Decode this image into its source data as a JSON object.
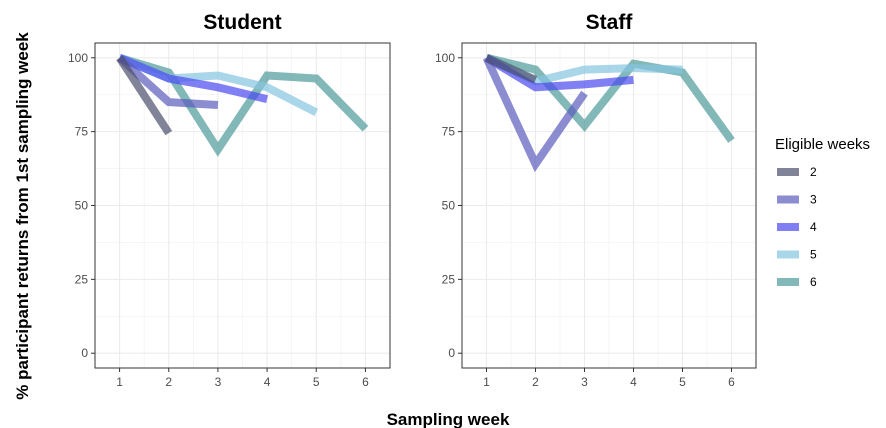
{
  "chart_data": {
    "type": "line",
    "ylabel": "% participant returns from 1st sampling week",
    "xlabel": "Sampling week",
    "xlim": [
      0.5,
      6.5
    ],
    "ylim": [
      -5,
      105
    ],
    "x_ticks": [
      1,
      2,
      3,
      4,
      5,
      6
    ],
    "y_ticks": [
      0,
      25,
      50,
      75,
      100
    ],
    "grid": true,
    "legend": {
      "title": "Eligible weeks",
      "position": "right",
      "entries": [
        {
          "label": "2",
          "color": "#4b4e6d"
        },
        {
          "label": "3",
          "color": "#5b5bbd"
        },
        {
          "label": "4",
          "color": "#4a4af0"
        },
        {
          "label": "5",
          "color": "#86c5e0"
        },
        {
          "label": "6",
          "color": "#4d9a9a"
        }
      ]
    },
    "panels": [
      {
        "title": "Student",
        "series": [
          {
            "name": "6",
            "color": "#4d9a9a",
            "x": [
              1,
              2,
              3,
              4,
              5,
              6
            ],
            "y": [
              100,
              95,
              69,
              94,
              93,
              76
            ]
          },
          {
            "name": "5",
            "color": "#86c5e0",
            "x": [
              1,
              2,
              3,
              4,
              5
            ],
            "y": [
              100,
              93,
              94,
              90,
              81.5
            ]
          },
          {
            "name": "4",
            "color": "#4a4af0",
            "x": [
              1,
              2,
              3,
              4
            ],
            "y": [
              100,
              93,
              90,
              86
            ]
          },
          {
            "name": "3",
            "color": "#5b5bbd",
            "x": [
              1,
              2,
              3
            ],
            "y": [
              100,
              85,
              84
            ]
          },
          {
            "name": "2",
            "color": "#4b4e6d",
            "x": [
              1,
              2
            ],
            "y": [
              100,
              74.5
            ]
          }
        ]
      },
      {
        "title": "Staff",
        "series": [
          {
            "name": "6",
            "color": "#4d9a9a",
            "x": [
              1,
              2,
              3,
              4,
              5,
              6
            ],
            "y": [
              100,
              96,
              77,
              98,
              95,
              72
            ]
          },
          {
            "name": "5",
            "color": "#86c5e0",
            "x": [
              1,
              2,
              3,
              4,
              5
            ],
            "y": [
              100,
              92,
              96,
              96.5,
              96
            ]
          },
          {
            "name": "4",
            "color": "#4a4af0",
            "x": [
              1,
              2,
              3,
              4
            ],
            "y": [
              100,
              90,
              91,
              92.5
            ]
          },
          {
            "name": "3",
            "color": "#5b5bbd",
            "x": [
              1,
              2,
              3
            ],
            "y": [
              100,
              64,
              88
            ]
          },
          {
            "name": "2",
            "color": "#4b4e6d",
            "x": [
              1,
              2
            ],
            "y": [
              100,
              92.5
            ]
          }
        ]
      }
    ]
  }
}
